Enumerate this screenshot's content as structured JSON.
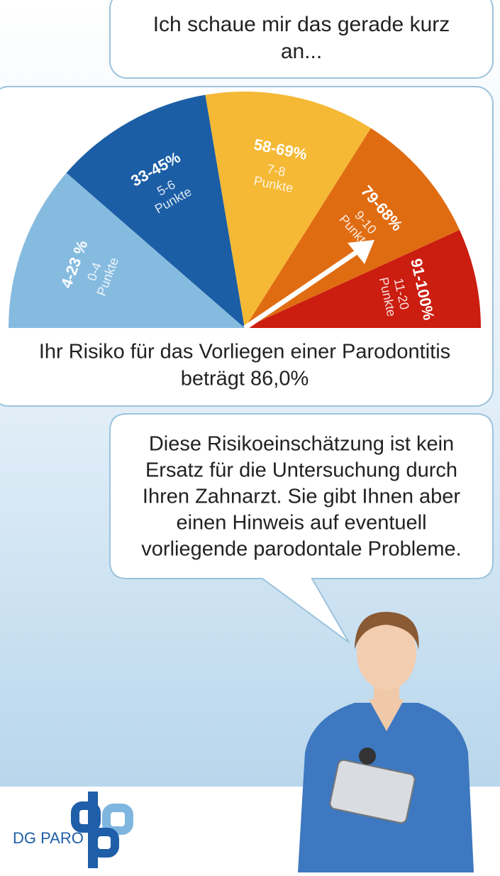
{
  "bubble_top": {
    "lines": [
      "Ich schaue mir das gerade kurz",
      "an..."
    ]
  },
  "gauge": {
    "segments": [
      {
        "range": "4-23 %",
        "points": "0-4",
        "unit": "Punkte",
        "color": "#86bbe0"
      },
      {
        "range": "33-45%",
        "points": "5-6",
        "unit": "Punkte",
        "color": "#1b5ea5"
      },
      {
        "range": "58-69%",
        "points": "7-8",
        "unit": "Punkte",
        "color": "#f5b936"
      },
      {
        "range": "79-68%",
        "points": "9-10",
        "unit": "Punkte",
        "color": "#e06c12"
      },
      {
        "range": "91-100%",
        "points": "11-20",
        "unit": "Punkte",
        "color": "#cb1d10"
      }
    ]
  },
  "result": {
    "lines": [
      "Ihr Risiko für das Vorliegen einer Parodontitis",
      "beträgt  86,0%"
    ]
  },
  "bubble_bottom": {
    "lines": [
      "Diese Risikoeinschätzung ist kein",
      "Ersatz für die Untersuchung durch",
      "Ihren Zahnarzt. Sie gibt Ihnen aber",
      "einen Hinweis auf eventuell",
      "vorliegende parodontale Probleme."
    ]
  },
  "logo": {
    "text": "DG PARO"
  }
}
